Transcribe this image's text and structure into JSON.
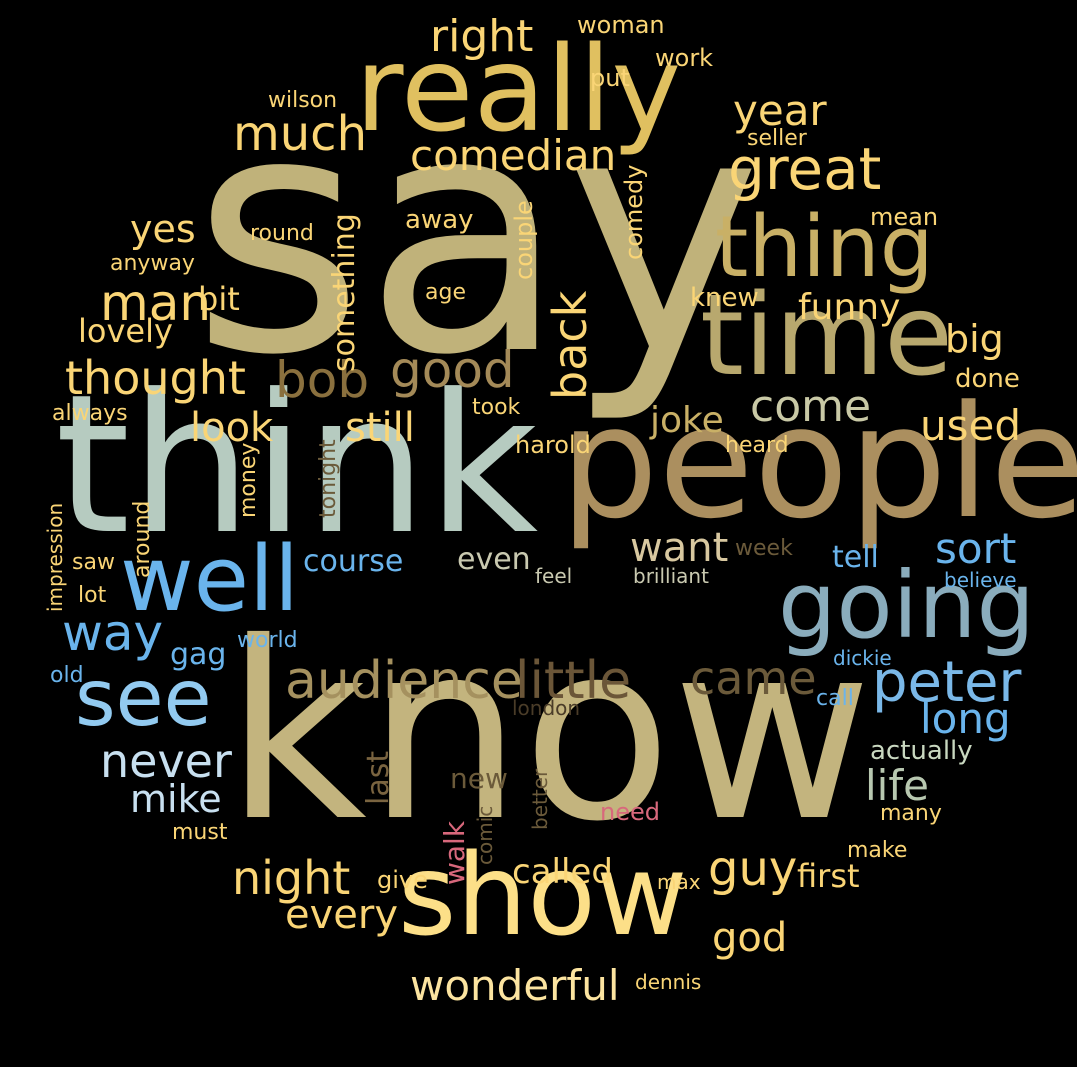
{
  "palette": {
    "background": "#000000",
    "khaki": "#c3b57a",
    "gold": "#e3c365",
    "sage": "#b4ccc2",
    "tan": "#ab8f5f",
    "blue": "#6ab4ec",
    "light_blue": "#92caf0",
    "steel_blue": "#8aacbc",
    "yellow": "#fad576",
    "brown": "#6b5638",
    "pink": "#d8687c"
  },
  "words": [
    {
      "text": "say",
      "color": "#c0b27a"
    },
    {
      "text": "know",
      "color": "#c3b47e"
    },
    {
      "text": "think",
      "color": "#b6cbc0"
    },
    {
      "text": "people",
      "color": "#ab8f5f"
    },
    {
      "text": "really",
      "color": "#e0c060"
    },
    {
      "text": "show",
      "color": "#fcdf88"
    },
    {
      "text": "time",
      "color": "#b8a86e"
    },
    {
      "text": "going",
      "color": "#8aacbc"
    },
    {
      "text": "thing",
      "color": "#c9b066"
    },
    {
      "text": "well",
      "color": "#6ab4ec"
    },
    {
      "text": "see",
      "color": "#92caf0"
    },
    {
      "text": "great",
      "color": "#fad576"
    },
    {
      "text": "audience",
      "color": "#a5915f"
    },
    {
      "text": "little",
      "color": "#6b5638"
    },
    {
      "text": "peter",
      "color": "#7ab8e8"
    },
    {
      "text": "came",
      "color": "#6b5a3a"
    },
    {
      "text": "bob",
      "color": "#8a703e"
    },
    {
      "text": "good",
      "color": "#a48a58"
    },
    {
      "text": "thought",
      "color": "#fad576"
    },
    {
      "text": "much",
      "color": "#fad576"
    },
    {
      "text": "right",
      "color": "#fad576"
    },
    {
      "text": "comedian",
      "color": "#fad576"
    },
    {
      "text": "year",
      "color": "#fad576"
    },
    {
      "text": "come",
      "color": "#c9c9a6"
    },
    {
      "text": "man",
      "color": "#fad576"
    },
    {
      "text": "back",
      "color": "#fad576"
    },
    {
      "text": "something",
      "color": "#fad576"
    },
    {
      "text": "look",
      "color": "#fad576"
    },
    {
      "text": "still",
      "color": "#fad576"
    },
    {
      "text": "used",
      "color": "#fad576"
    },
    {
      "text": "way",
      "color": "#6ab4ec"
    },
    {
      "text": "never",
      "color": "#c8e0f0"
    },
    {
      "text": "night",
      "color": "#fad576"
    },
    {
      "text": "guy",
      "color": "#fad576"
    },
    {
      "text": "want",
      "color": "#d8c8a0"
    },
    {
      "text": "sort",
      "color": "#6ab4ec"
    },
    {
      "text": "long",
      "color": "#6ab4ec"
    },
    {
      "text": "life",
      "color": "#b8c8b0"
    },
    {
      "text": "wonderful",
      "color": "#fce4a0"
    },
    {
      "text": "every",
      "color": "#fad576"
    },
    {
      "text": "god",
      "color": "#fad576"
    },
    {
      "text": "mike",
      "color": "#c8e0f0"
    },
    {
      "text": "funny",
      "color": "#fad576"
    },
    {
      "text": "big",
      "color": "#fad576"
    },
    {
      "text": "joke",
      "color": "#c9b066"
    },
    {
      "text": "yes",
      "color": "#fad576"
    },
    {
      "text": "lovely",
      "color": "#fad576"
    },
    {
      "text": "bit",
      "color": "#fad576"
    },
    {
      "text": "called",
      "color": "#fad576"
    },
    {
      "text": "first",
      "color": "#fad576"
    },
    {
      "text": "course",
      "color": "#6ab4ec"
    },
    {
      "text": "even",
      "color": "#c9c9b0"
    },
    {
      "text": "tell",
      "color": "#6ab4ec"
    },
    {
      "text": "last",
      "color": "#7a6440"
    },
    {
      "text": "new",
      "color": "#6b5a3a"
    },
    {
      "text": "walk",
      "color": "#d8687c"
    },
    {
      "text": "couple",
      "color": "#fad576"
    },
    {
      "text": "comedy",
      "color": "#fad576"
    },
    {
      "text": "knew",
      "color": "#fad576"
    },
    {
      "text": "done",
      "color": "#fad576"
    },
    {
      "text": "gag",
      "color": "#6ab4ec"
    },
    {
      "text": "actually",
      "color": "#c9d8c0"
    },
    {
      "text": "away",
      "color": "#fad576"
    },
    {
      "text": "work",
      "color": "#fad576"
    },
    {
      "text": "woman",
      "color": "#fad576"
    },
    {
      "text": "put",
      "color": "#fad576"
    },
    {
      "text": "wilson",
      "color": "#fad576"
    },
    {
      "text": "seller",
      "color": "#fad576"
    },
    {
      "text": "mean",
      "color": "#fad576"
    },
    {
      "text": "round",
      "color": "#fad576"
    },
    {
      "text": "anyway",
      "color": "#fad576"
    },
    {
      "text": "age",
      "color": "#fad576"
    },
    {
      "text": "always",
      "color": "#fad576"
    },
    {
      "text": "took",
      "color": "#fad576"
    },
    {
      "text": "harold",
      "color": "#fad576"
    },
    {
      "text": "heard",
      "color": "#fad576"
    },
    {
      "text": "impression",
      "color": "#fad576"
    },
    {
      "text": "around",
      "color": "#fad576"
    },
    {
      "text": "money",
      "color": "#fad576"
    },
    {
      "text": "tonight",
      "color": "#6b5a3a"
    },
    {
      "text": "saw",
      "color": "#fad576"
    },
    {
      "text": "lot",
      "color": "#fad576"
    },
    {
      "text": "old",
      "color": "#6ab4ec"
    },
    {
      "text": "world",
      "color": "#6ab4ec"
    },
    {
      "text": "feel",
      "color": "#c9c9b0"
    },
    {
      "text": "brilliant",
      "color": "#c9c9b0"
    },
    {
      "text": "week",
      "color": "#6b5a3a"
    },
    {
      "text": "believe",
      "color": "#6ab4ec"
    },
    {
      "text": "dickie",
      "color": "#6ab4ec"
    },
    {
      "text": "call",
      "color": "#6ab4ec"
    },
    {
      "text": "london",
      "color": "#4a3c28"
    },
    {
      "text": "comic",
      "color": "#6b5a3a"
    },
    {
      "text": "better",
      "color": "#6b5a3a"
    },
    {
      "text": "need",
      "color": "#d8687c"
    },
    {
      "text": "many",
      "color": "#fad576"
    },
    {
      "text": "must",
      "color": "#fad576"
    },
    {
      "text": "give",
      "color": "#fad576"
    },
    {
      "text": "max",
      "color": "#fad576"
    },
    {
      "text": "make",
      "color": "#fad576"
    },
    {
      "text": "dennis",
      "color": "#fad576"
    }
  ]
}
